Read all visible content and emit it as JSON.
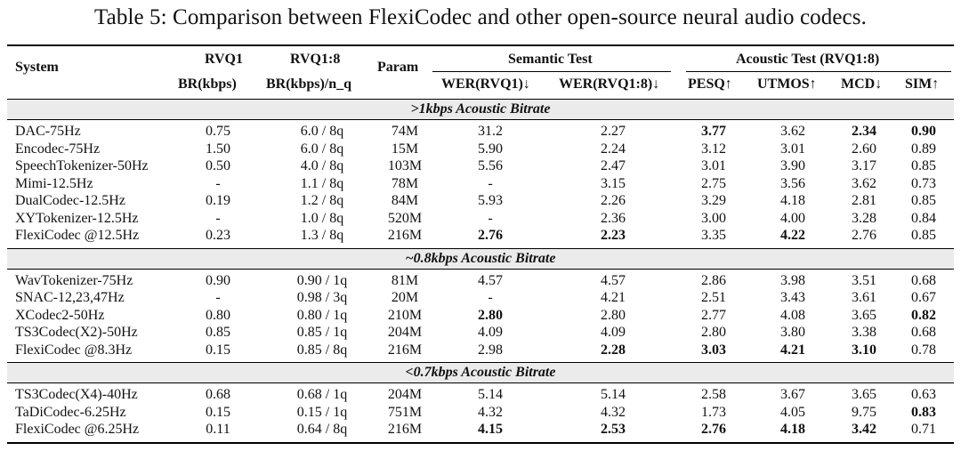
{
  "caption": "Table 5: Comparison between FlexiCodec and other open-source neural audio codecs.",
  "headers": {
    "system": "System",
    "rvq1_top": "RVQ1",
    "rvq1_bottom": "BR(kbps)",
    "rvq18_top": "RVQ1:8",
    "rvq18_bottom": "BR(kbps)/n_q",
    "param": "Param",
    "semantic": "Semantic Test",
    "acoustic": "Acoustic Test (RVQ1:8)",
    "wer1": "WER(RVQ1)↓",
    "wer18": "WER(RVQ1:8)↓",
    "pesq": "PESQ↑",
    "utmos": "UTMOS↑",
    "mcd": "MCD↓",
    "sim": "SIM↑"
  },
  "sections": [
    {
      "title": ">1kbps Acoustic Bitrate",
      "rows": [
        {
          "system": "DAC-75Hz",
          "rvq1": "0.75",
          "rvq18": "6.0 / 8q",
          "param": "74M",
          "wer1": "31.2",
          "wer18": "2.27",
          "pesq": "3.77",
          "utmos": "3.62",
          "mcd": "2.34",
          "sim": "0.90"
        },
        {
          "system": "Encodec-75Hz",
          "rvq1": "1.50",
          "rvq18": "6.0 / 8q",
          "param": "15M",
          "wer1": "5.90",
          "wer18": "2.24",
          "pesq": "3.12",
          "utmos": "3.01",
          "mcd": "2.60",
          "sim": "0.89"
        },
        {
          "system": "SpeechTokenizer-50Hz",
          "rvq1": "0.50",
          "rvq18": "4.0 / 8q",
          "param": "103M",
          "wer1": "5.56",
          "wer18": "2.47",
          "pesq": "3.01",
          "utmos": "3.90",
          "mcd": "3.17",
          "sim": "0.85"
        },
        {
          "system": "Mimi-12.5Hz",
          "rvq1": "-",
          "rvq18": "1.1 / 8q",
          "param": "78M",
          "wer1": "-",
          "wer18": "3.15",
          "pesq": "2.75",
          "utmos": "3.56",
          "mcd": "3.62",
          "sim": "0.73"
        },
        {
          "system": "DualCodec-12.5Hz",
          "rvq1": "0.19",
          "rvq18": "1.2 / 8q",
          "param": "84M",
          "wer1": "5.93",
          "wer18": "2.26",
          "pesq": "3.29",
          "utmos": "4.18",
          "mcd": "2.81",
          "sim": "0.85"
        },
        {
          "system": "XYTokenizer-12.5Hz",
          "rvq1": "-",
          "rvq18": "1.0 / 8q",
          "param": "520M",
          "wer1": "-",
          "wer18": "2.36",
          "pesq": "3.00",
          "utmos": "4.00",
          "mcd": "3.28",
          "sim": "0.84"
        },
        {
          "system": "FlexiCodec @12.5Hz",
          "rvq1": "0.23",
          "rvq18": "1.3 / 8q",
          "param": "216M",
          "wer1": "2.76",
          "wer18": "2.23",
          "pesq": "3.35",
          "utmos": "4.22",
          "mcd": "2.76",
          "sim": "0.85"
        }
      ]
    },
    {
      "title": "~0.8kbps Acoustic Bitrate",
      "rows": [
        {
          "system": "WavTokenizer-75Hz",
          "rvq1": "0.90",
          "rvq18": "0.90 / 1q",
          "param": "81M",
          "wer1": "4.57",
          "wer18": "4.57",
          "pesq": "2.86",
          "utmos": "3.98",
          "mcd": "3.51",
          "sim": "0.68"
        },
        {
          "system": "SNAC-12,23,47Hz",
          "rvq1": "-",
          "rvq18": "0.98 / 3q",
          "param": "20M",
          "wer1": "-",
          "wer18": "4.21",
          "pesq": "2.51",
          "utmos": "3.43",
          "mcd": "3.61",
          "sim": "0.67"
        },
        {
          "system": "XCodec2-50Hz",
          "rvq1": "0.80",
          "rvq18": "0.80 / 1q",
          "param": "210M",
          "wer1": "2.80",
          "wer18": "2.80",
          "pesq": "2.77",
          "utmos": "4.08",
          "mcd": "3.65",
          "sim": "0.82"
        },
        {
          "system": "TS3Codec(X2)-50Hz",
          "rvq1": "0.85",
          "rvq18": "0.85 / 1q",
          "param": "204M",
          "wer1": "4.09",
          "wer18": "4.09",
          "pesq": "2.80",
          "utmos": "3.80",
          "mcd": "3.38",
          "sim": "0.68"
        },
        {
          "system": "FlexiCodec @8.3Hz",
          "rvq1": "0.15",
          "rvq18": "0.85 / 8q",
          "param": "216M",
          "wer1": "2.98",
          "wer18": "2.28",
          "pesq": "3.03",
          "utmos": "4.21",
          "mcd": "3.10",
          "sim": "0.78"
        }
      ]
    },
    {
      "title": "<0.7kbps Acoustic Bitrate",
      "rows": [
        {
          "system": "TS3Codec(X4)-40Hz",
          "rvq1": "0.68",
          "rvq18": "0.68 / 1q",
          "param": "204M",
          "wer1": "5.14",
          "wer18": "5.14",
          "pesq": "2.58",
          "utmos": "3.67",
          "mcd": "3.65",
          "sim": "0.63"
        },
        {
          "system": "TaDiCodec-6.25Hz",
          "rvq1": "0.15",
          "rvq18": "0.15 / 1q",
          "param": "751M",
          "wer1": "4.32",
          "wer18": "4.32",
          "pesq": "1.73",
          "utmos": "4.05",
          "mcd": "9.75",
          "sim": "0.83"
        },
        {
          "system": "FlexiCodec @6.25Hz",
          "rvq1": "0.11",
          "rvq18": "0.64 / 8q",
          "param": "216M",
          "wer1": "4.15",
          "wer18": "2.53",
          "pesq": "2.76",
          "utmos": "4.18",
          "mcd": "3.42",
          "sim": "0.71"
        }
      ]
    }
  ],
  "bold_cells": [
    "0.0.pesq",
    "0.0.mcd",
    "0.0.sim",
    "0.6.wer1",
    "0.6.wer18",
    "0.6.utmos",
    "1.2.wer1",
    "1.2.sim",
    "1.4.wer18",
    "1.4.pesq",
    "1.4.utmos",
    "1.4.mcd",
    "2.1.sim",
    "2.2.wer1",
    "2.2.wer18",
    "2.2.pesq",
    "2.2.utmos",
    "2.2.mcd"
  ]
}
